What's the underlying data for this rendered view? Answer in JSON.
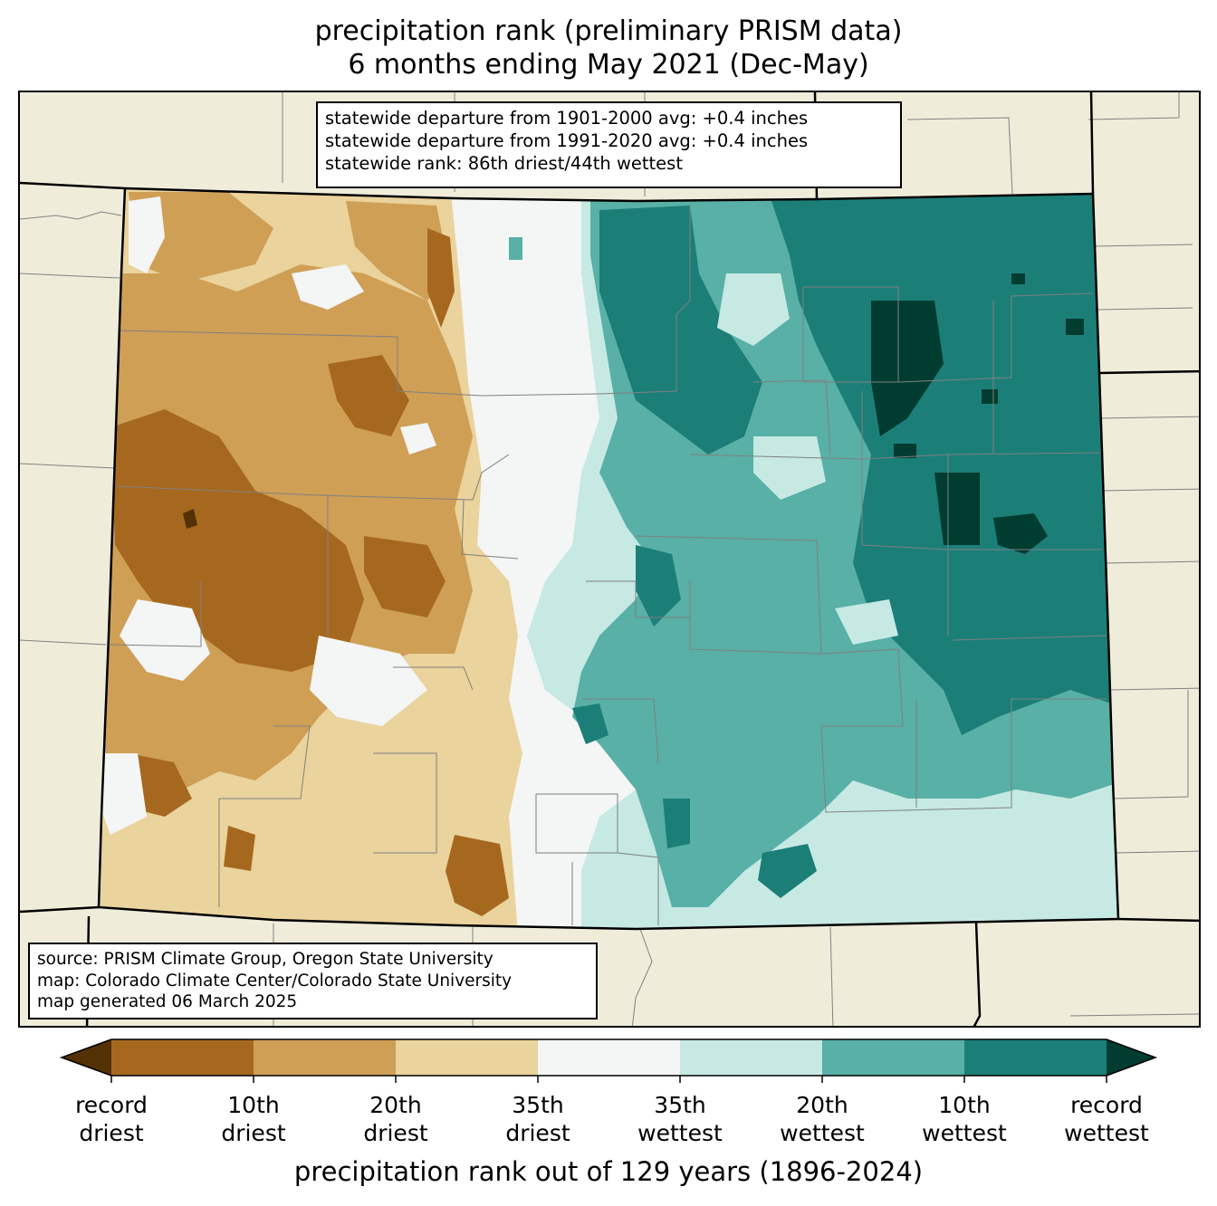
{
  "title": {
    "line1": "precipitation rank (preliminary PRISM data)",
    "line2": "6 months ending May 2021 (Dec-May)"
  },
  "stats_box": {
    "line1": "statewide departure from 1901-2000 avg: +0.4 inches",
    "line2": "statewide departure from 1991-2020 avg: +0.4 inches",
    "line3": "statewide rank: 86th driest/44th wettest"
  },
  "source_box": {
    "line1": "source: PRISM Climate Group, Oregon State University",
    "line2": "map: Colorado Climate Center/Colorado State University",
    "line3": "map generated 06 March 2025"
  },
  "colorbar": {
    "label": "precipitation rank out of 129 years (1896-2024)",
    "under_color": "#543005",
    "over_color": "#003c30",
    "bins": [
      "#a6681f",
      "#cf9f56",
      "#ead39c",
      "#f4f5f5",
      "#c6e9e3",
      "#58b0a6",
      "#1b7f78"
    ],
    "ticks": [
      {
        "line1": "record",
        "line2": "driest"
      },
      {
        "line1": "10th",
        "line2": "driest"
      },
      {
        "line1": "20th",
        "line2": "driest"
      },
      {
        "line1": "35th",
        "line2": "driest"
      },
      {
        "line1": "35th",
        "line2": "wettest"
      },
      {
        "line1": "20th",
        "line2": "wettest"
      },
      {
        "line1": "10th",
        "line2": "wettest"
      },
      {
        "line1": "record",
        "line2": "wettest"
      }
    ]
  },
  "map": {
    "land_color": "#efedda",
    "state_border_color": "#000000",
    "county_line_color": "#808080"
  }
}
